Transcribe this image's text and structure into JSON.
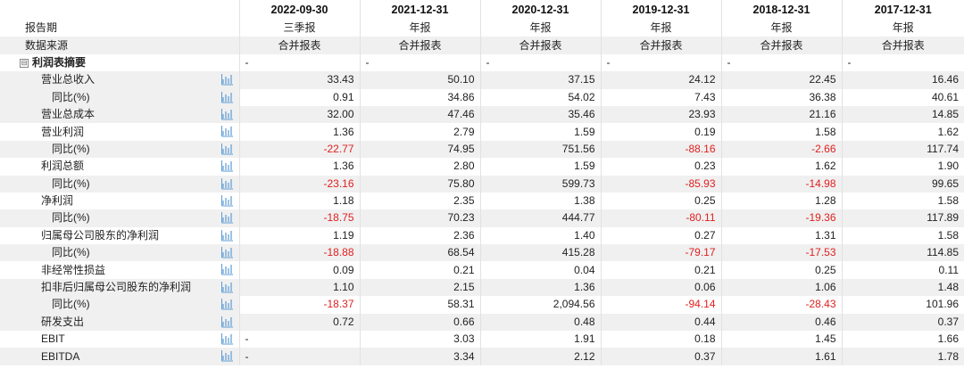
{
  "header": {
    "periods": [
      "2022-09-30",
      "2021-12-31",
      "2020-12-31",
      "2019-12-31",
      "2018-12-31",
      "2017-12-31"
    ]
  },
  "meta_rows": [
    {
      "label": "报告期",
      "values": [
        "三季报",
        "年报",
        "年报",
        "年报",
        "年报",
        "年报"
      ]
    },
    {
      "label": "数据来源",
      "values": [
        "合并报表",
        "合并报表",
        "合并报表",
        "合并报表",
        "合并报表",
        "合并报表"
      ]
    }
  ],
  "section": {
    "label": "利润表摘要",
    "toggle": "⊟",
    "values": [
      "-",
      "-",
      "-",
      "-",
      "-",
      "-"
    ]
  },
  "rows": [
    {
      "label": "营业总收入",
      "indent": 1,
      "values": [
        "33.43",
        "50.10",
        "37.15",
        "24.12",
        "22.45",
        "16.46"
      ]
    },
    {
      "label": "同比(%)",
      "indent": 2,
      "values": [
        "0.91",
        "34.86",
        "54.02",
        "7.43",
        "36.38",
        "40.61"
      ]
    },
    {
      "label": "营业总成本",
      "indent": 1,
      "values": [
        "32.00",
        "47.46",
        "35.46",
        "23.93",
        "21.16",
        "14.85"
      ]
    },
    {
      "label": "营业利润",
      "indent": 1,
      "values": [
        "1.36",
        "2.79",
        "1.59",
        "0.19",
        "1.58",
        "1.62"
      ]
    },
    {
      "label": "同比(%)",
      "indent": 2,
      "values": [
        "-22.77",
        "74.95",
        "751.56",
        "-88.16",
        "-2.66",
        "117.74"
      ]
    },
    {
      "label": "利润总额",
      "indent": 1,
      "values": [
        "1.36",
        "2.80",
        "1.59",
        "0.23",
        "1.62",
        "1.90"
      ]
    },
    {
      "label": "同比(%)",
      "indent": 2,
      "values": [
        "-23.16",
        "75.80",
        "599.73",
        "-85.93",
        "-14.98",
        "99.65"
      ]
    },
    {
      "label": "净利润",
      "indent": 1,
      "values": [
        "1.18",
        "2.35",
        "1.38",
        "0.25",
        "1.28",
        "1.58"
      ]
    },
    {
      "label": "同比(%)",
      "indent": 2,
      "values": [
        "-18.75",
        "70.23",
        "444.77",
        "-80.11",
        "-19.36",
        "117.89"
      ]
    },
    {
      "label": "归属母公司股东的净利润",
      "indent": 1,
      "values": [
        "1.19",
        "2.36",
        "1.40",
        "0.27",
        "1.31",
        "1.58"
      ]
    },
    {
      "label": "同比(%)",
      "indent": 2,
      "values": [
        "-18.88",
        "68.54",
        "415.28",
        "-79.17",
        "-17.53",
        "114.85"
      ]
    },
    {
      "label": "非经常性损益",
      "indent": 1,
      "values": [
        "0.09",
        "0.21",
        "0.04",
        "0.21",
        "0.25",
        "0.11"
      ]
    },
    {
      "label": "扣非后归属母公司股东的净利润",
      "indent": 1,
      "values": [
        "1.10",
        "2.15",
        "1.36",
        "0.06",
        "1.06",
        "1.48"
      ]
    },
    {
      "label": "同比(%)",
      "indent": 2,
      "values": [
        "-18.37",
        "58.31",
        "2,094.56",
        "-94.14",
        "-28.43",
        "101.96"
      ]
    },
    {
      "label": "研发支出",
      "indent": 1,
      "values": [
        "0.72",
        "0.66",
        "0.48",
        "0.44",
        "0.46",
        "0.37"
      ]
    },
    {
      "label": "EBIT",
      "indent": 1,
      "values": [
        "-",
        "3.03",
        "1.91",
        "0.18",
        "1.45",
        "1.66"
      ]
    },
    {
      "label": "EBITDA",
      "indent": 1,
      "values": [
        "-",
        "3.34",
        "2.12",
        "0.37",
        "1.61",
        "1.78"
      ]
    }
  ],
  "icons": {
    "chart": "bar-chart-icon",
    "toggle": "collapse-toggle-icon"
  },
  "colors": {
    "negative": "#e02020",
    "icon": "#5b9bd5",
    "stripe": "#f0f0f0"
  }
}
